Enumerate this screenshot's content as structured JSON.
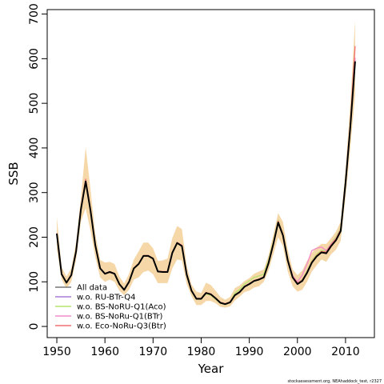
{
  "chart_data": {
    "type": "line",
    "xlabel": "Year",
    "ylabel": "SSB",
    "xlim": [
      1948,
      2016
    ],
    "ylim": [
      -25,
      710
    ],
    "x_ticks": [
      1950,
      1960,
      1970,
      1980,
      1990,
      2000,
      2010
    ],
    "y_ticks": [
      0,
      100,
      200,
      300,
      400,
      500,
      600,
      700
    ],
    "grid": false,
    "legend_position": "bottom-left",
    "credit": "stockassessment.org, NEAhaddock_test, r2327",
    "x": [
      1950,
      1951,
      1952,
      1953,
      1954,
      1955,
      1956,
      1957,
      1958,
      1959,
      1960,
      1961,
      1962,
      1963,
      1964,
      1965,
      1966,
      1967,
      1968,
      1969,
      1970,
      1971,
      1972,
      1973,
      1974,
      1975,
      1976,
      1977,
      1978,
      1979,
      1980,
      1981,
      1982,
      1983,
      1984,
      1985,
      1986,
      1987,
      1988,
      1989,
      1990,
      1991,
      1992,
      1993,
      1994,
      1995,
      1996,
      1997,
      1998,
      1999,
      2000,
      2001,
      2002,
      2003,
      2004,
      2005,
      2006,
      2007,
      2008,
      2009,
      2010,
      2011,
      2012
    ],
    "band": {
      "color": "#f5d7a8",
      "lower": [
        175,
        105,
        85,
        100,
        150,
        235,
        265,
        215,
        155,
        110,
        100,
        105,
        100,
        80,
        70,
        82,
        105,
        110,
        122,
        125,
        117,
        97,
        97,
        97,
        130,
        150,
        148,
        95,
        68,
        48,
        48,
        57,
        57,
        52,
        44,
        42,
        45,
        58,
        67,
        77,
        80,
        87,
        90,
        100,
        125,
        162,
        200,
        180,
        123,
        90,
        78,
        82,
        100,
        123,
        137,
        150,
        145,
        162,
        172,
        192,
        290,
        400,
        520
      ],
      "upper": [
        245,
        133,
        112,
        130,
        188,
        288,
        402,
        308,
        207,
        149,
        143,
        145,
        140,
        112,
        96,
        118,
        150,
        168,
        188,
        188,
        175,
        147,
        148,
        152,
        198,
        225,
        218,
        136,
        94,
        78,
        75,
        98,
        93,
        80,
        66,
        60,
        66,
        86,
        92,
        102,
        108,
        118,
        123,
        128,
        160,
        206,
        254,
        234,
        172,
        128,
        115,
        125,
        147,
        165,
        177,
        185,
        185,
        198,
        212,
        235,
        350,
        500,
        685
      ]
    },
    "series": [
      {
        "name": "All data",
        "color": "#000000",
        "width": 2,
        "values": [
          208,
          117,
          98,
          115,
          168,
          262,
          325,
          260,
          182,
          130,
          118,
          122,
          118,
          95,
          82,
          100,
          130,
          140,
          158,
          158,
          152,
          123,
          122,
          122,
          165,
          187,
          180,
          116,
          80,
          62,
          62,
          75,
          72,
          63,
          53,
          50,
          54,
          70,
          77,
          89,
          95,
          102,
          105,
          110,
          142,
          185,
          233,
          204,
          148,
          110,
          95,
          102,
          120,
          143,
          157,
          166,
          164,
          180,
          193,
          214,
          321,
          447,
          594
        ]
      },
      {
        "name": "w.o. RU-BTr-Q4",
        "color": "#a87cd6",
        "width": 1.3,
        "values": [
          208,
          118,
          98,
          116,
          169,
          263,
          326,
          262,
          182,
          130,
          118,
          122,
          118,
          95,
          82,
          100,
          130,
          140,
          158,
          158,
          152,
          124,
          122,
          123,
          165,
          187,
          181,
          117,
          80,
          62,
          62,
          76,
          73,
          63,
          53,
          50,
          55,
          71,
          78,
          90,
          96,
          102,
          105,
          110,
          142,
          185,
          233,
          205,
          149,
          111,
          96,
          103,
          121,
          144,
          158,
          167,
          165,
          181,
          194,
          215,
          322,
          448,
          596
        ]
      },
      {
        "name": "w.o. BS-NoRU-Q1(Aco)",
        "color": "#b8e36f",
        "width": 1.3,
        "values": [
          208,
          117,
          98,
          115,
          168,
          262,
          324,
          259,
          181,
          130,
          118,
          122,
          118,
          95,
          82,
          100,
          130,
          140,
          158,
          158,
          152,
          123,
          122,
          122,
          164,
          186,
          180,
          115,
          79,
          61,
          61,
          73,
          70,
          61,
          52,
          49,
          54,
          75,
          83,
          95,
          102,
          110,
          113,
          117,
          148,
          190,
          238,
          208,
          151,
          112,
          97,
          105,
          124,
          147,
          162,
          170,
          170,
          186,
          200,
          221,
          328,
          452,
          600
        ]
      },
      {
        "name": "w.o. BS-NoRu-Q1(BTr)",
        "color": "#f28ac8",
        "width": 1.3,
        "values": [
          208,
          117,
          98,
          115,
          168,
          262,
          325,
          260,
          182,
          130,
          118,
          122,
          118,
          95,
          82,
          100,
          130,
          140,
          158,
          158,
          152,
          123,
          122,
          122,
          165,
          187,
          180,
          116,
          80,
          62,
          62,
          75,
          72,
          63,
          53,
          50,
          54,
          70,
          77,
          89,
          95,
          102,
          105,
          110,
          142,
          185,
          233,
          204,
          150,
          114,
          100,
          115,
          140,
          170,
          175,
          178,
          170,
          185,
          197,
          218,
          325,
          452,
          602
        ]
      },
      {
        "name": "w.o. Eco-NoRu-Q3(Btr)",
        "color": "#f07070",
        "width": 1.3,
        "values": [
          209,
          118,
          99,
          116,
          170,
          265,
          330,
          263,
          184,
          131,
          119,
          123,
          119,
          96,
          83,
          101,
          131,
          141,
          159,
          159,
          153,
          124,
          123,
          123,
          166,
          188,
          182,
          117,
          81,
          63,
          63,
          76,
          73,
          64,
          54,
          51,
          55,
          71,
          78,
          90,
          96,
          103,
          106,
          111,
          143,
          187,
          236,
          207,
          150,
          112,
          97,
          104,
          122,
          145,
          159,
          168,
          167,
          183,
          196,
          217,
          326,
          454,
          628
        ]
      }
    ]
  }
}
